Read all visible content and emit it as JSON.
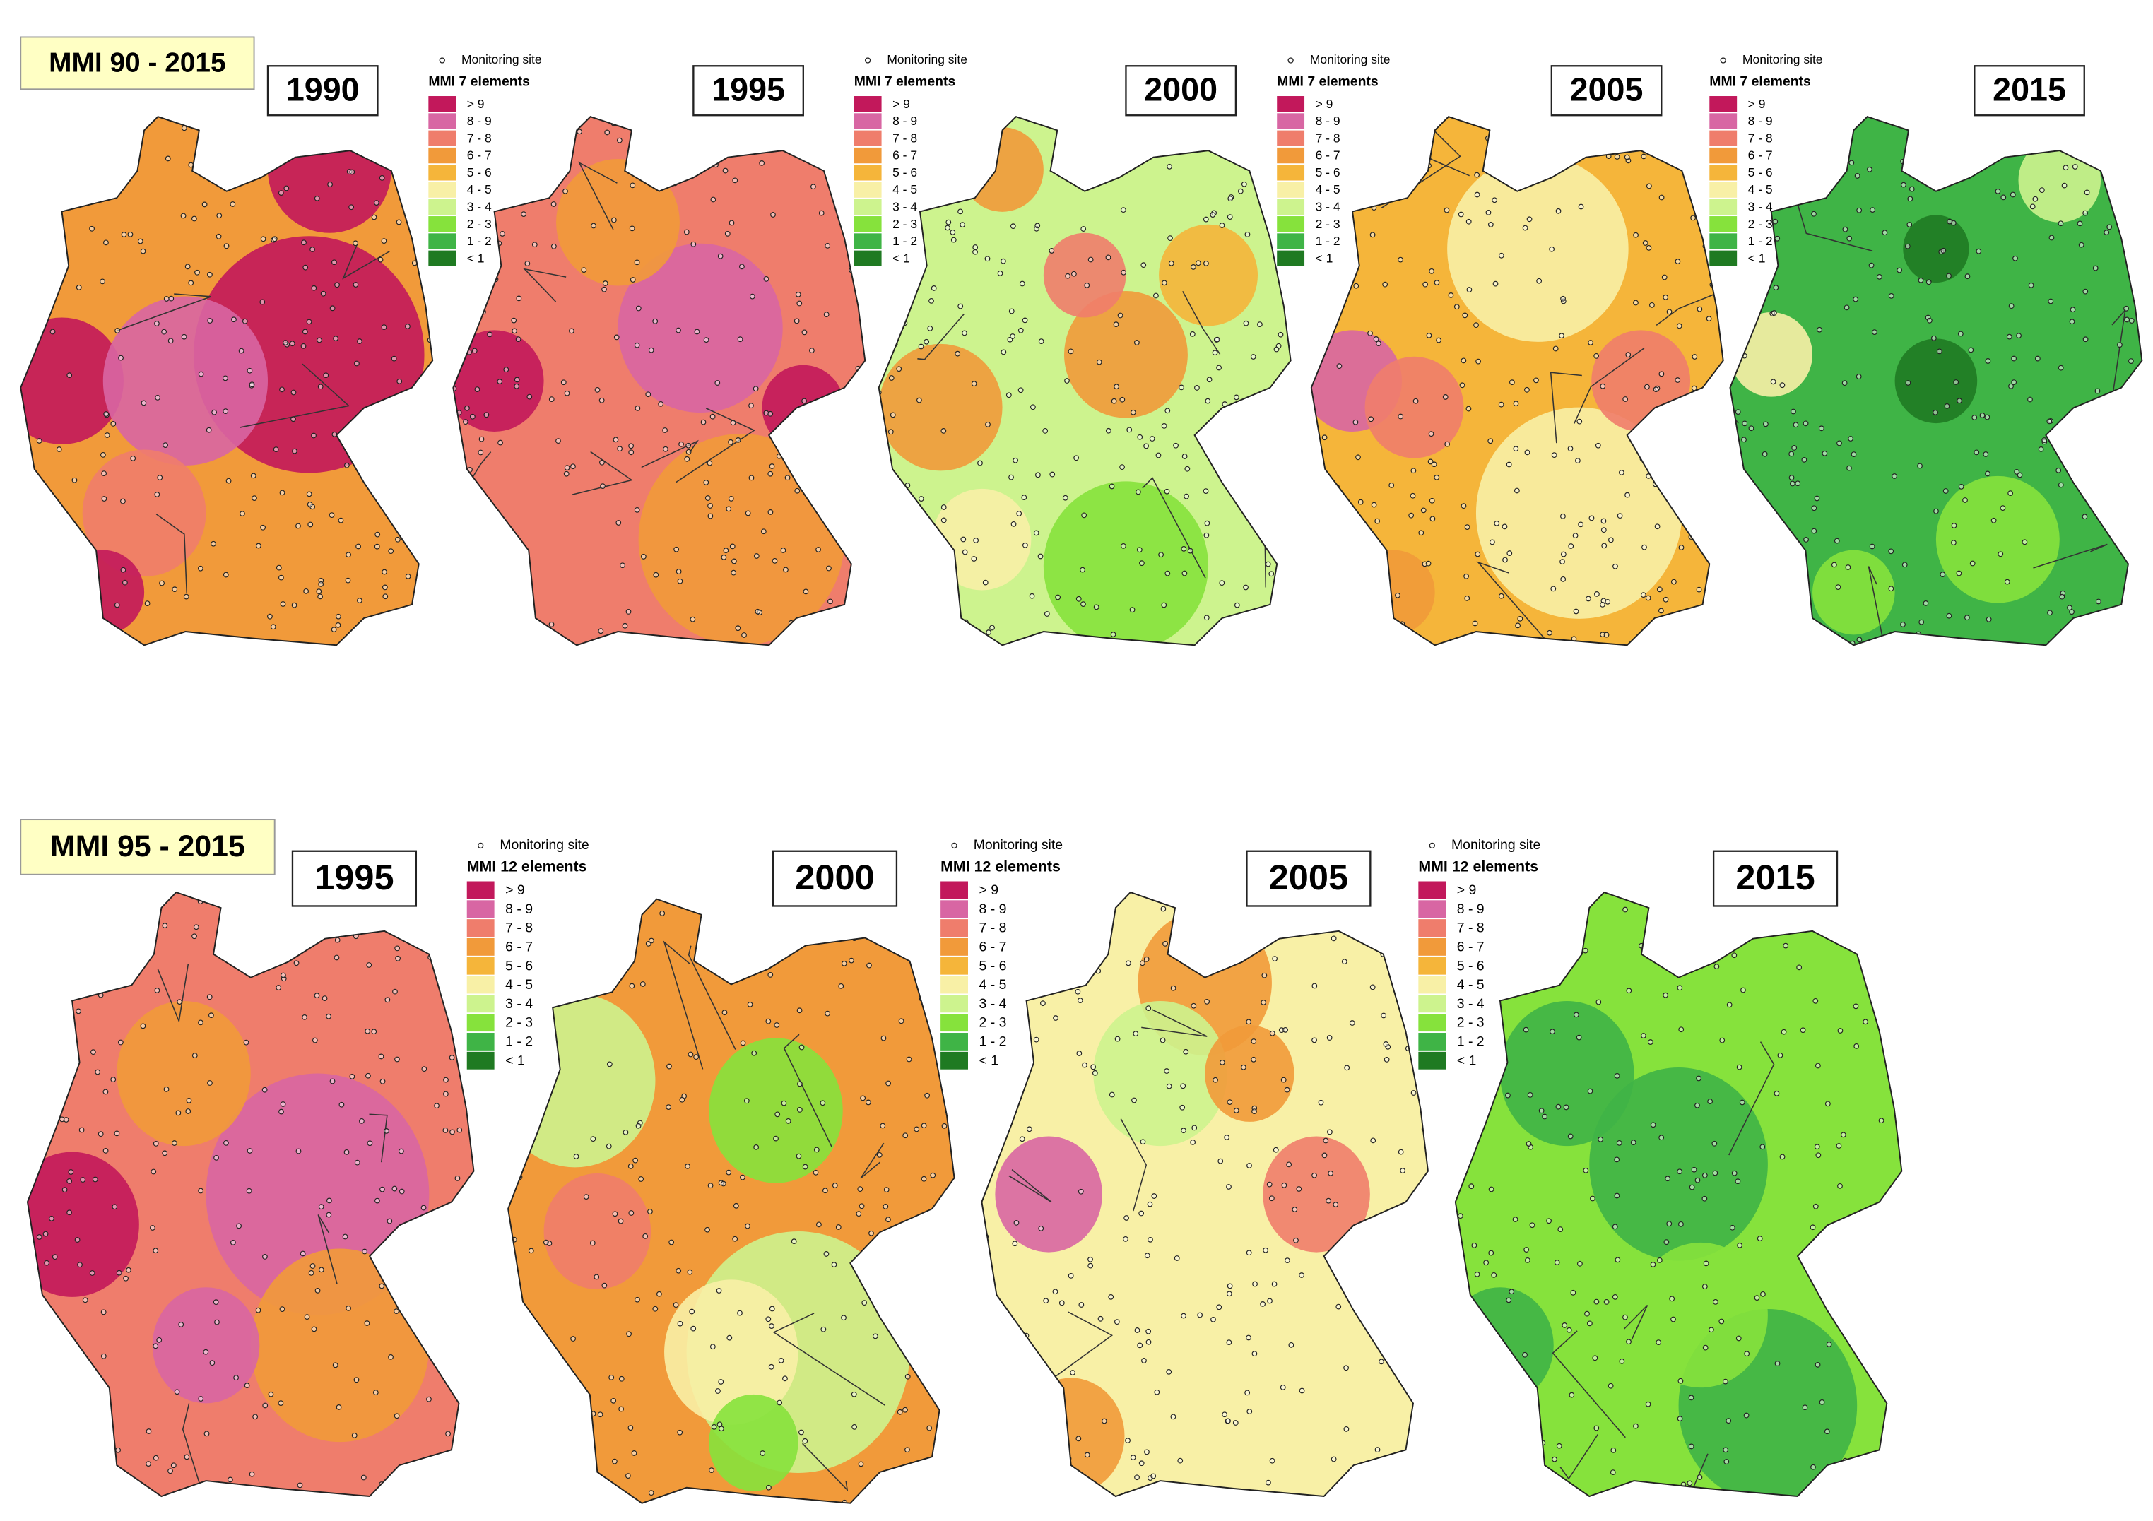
{
  "class_colors": [
    "#c2185b",
    "#d866a3",
    "#ef7d6c",
    "#f19a3a",
    "#f5b53a",
    "#f8f0a6",
    "#cdf38e",
    "#86e23c",
    "#3fb446",
    "#1f7a22"
  ],
  "panels": [
    {
      "title": "MMI 90 - 2015",
      "maps": [
        {
          "year": "1990"
        },
        {
          "year": "1995",
          "legend": {
            "site": "Monitoring site",
            "title": "MMI 7 elements",
            "classes": [
              "> 9",
              "8 - 9",
              "7 - 8",
              "6 - 7",
              "5 - 6",
              "4 - 5",
              "3 - 4",
              "2 - 3",
              "1 - 2",
              "< 1"
            ]
          }
        },
        {
          "year": "2000",
          "legend": {
            "site": "Monitoring site",
            "title": "MMI 7 elements",
            "classes": [
              "> 9",
              "8 - 9",
              "7 - 8",
              "6 - 7",
              "5 - 6",
              "4 - 5",
              "3 - 4",
              "2 - 3",
              "1 - 2",
              "< 1"
            ]
          }
        },
        {
          "year": "2005",
          "legend": {
            "site": "Monitoring site",
            "title": "MMI 7 elements",
            "classes": [
              "> 9",
              "8 - 9",
              "7 - 8",
              "6 - 7",
              "5 - 6",
              "4 - 5",
              "3 - 4",
              "2 - 3",
              "1 - 2",
              "< 1"
            ]
          }
        },
        {
          "year": "2015",
          "legend": {
            "site": "Monitoring site",
            "title": "MMI 7 elements",
            "classes": [
              "> 9",
              "8 - 9",
              "7 - 8",
              "6 - 7",
              "5 - 6",
              "4 - 5",
              "3 - 4",
              "2 - 3",
              "1 - 2",
              "< 1"
            ]
          }
        }
      ]
    },
    {
      "title": "MMI 95 - 2015",
      "maps": [
        {
          "year": "1995"
        },
        {
          "year": "2000",
          "legend": {
            "site": "Monitoring site",
            "title": "MMI 12 elements",
            "classes": [
              "> 9",
              "8 - 9",
              "7 - 8",
              "6 - 7",
              "5 - 6",
              "4 - 5",
              "3 - 4",
              "2 - 3",
              "1 - 2",
              "< 1"
            ]
          }
        },
        {
          "year": "2005",
          "legend": {
            "site": "Monitoring site",
            "title": "MMI 12 elements",
            "classes": [
              "> 9",
              "8 - 9",
              "7 - 8",
              "6 - 7",
              "5 - 6",
              "4 - 5",
              "3 - 4",
              "2 - 3",
              "1 - 2",
              "< 1"
            ]
          }
        },
        {
          "year": "2015",
          "legend": {
            "site": "Monitoring site",
            "title": "MMI 12 elements",
            "classes": [
              "> 9",
              "8 - 9",
              "7 - 8",
              "6 - 7",
              "5 - 6",
              "4 - 5",
              "3 - 4",
              "2 - 3",
              "1 - 2",
              "< 1"
            ]
          }
        }
      ]
    }
  ]
}
